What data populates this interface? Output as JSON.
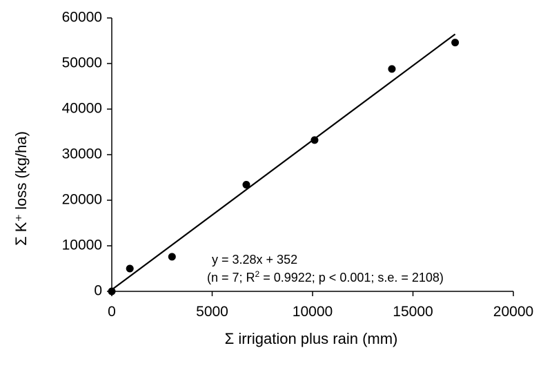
{
  "chart_data": {
    "type": "scatter",
    "title": "",
    "xlabel": "Σ irrigation plus rain (mm)",
    "ylabel": "Σ K⁺ loss (kg/ha)",
    "xlim": [
      0,
      20000
    ],
    "ylim": [
      0,
      60000
    ],
    "x_ticks": [
      0,
      5000,
      10000,
      15000,
      20000
    ],
    "y_ticks": [
      0,
      10000,
      20000,
      30000,
      40000,
      50000,
      60000
    ],
    "grid": false,
    "legend": "none",
    "series": [
      {
        "points": [
          {
            "x": 0,
            "y": 0
          },
          {
            "x": 900,
            "y": 5000
          },
          {
            "x": 3000,
            "y": 7600
          },
          {
            "x": 6700,
            "y": 23400
          },
          {
            "x": 10100,
            "y": 33200
          },
          {
            "x": 13950,
            "y": 48800
          },
          {
            "x": 17100,
            "y": 54600
          }
        ]
      }
    ],
    "trendline": {
      "slope": 3.28,
      "intercept": 352,
      "x_range": [
        0,
        17100
      ]
    },
    "annotations": {
      "equation": "y = 3.28x + 352",
      "stats_prefix": "(n = 7; R",
      "stats_sup": "2",
      "stats_suffix": " = 0.9922; p < 0.001; s.e. = 2108)"
    },
    "colors": {
      "points": "#000000",
      "line": "#000000",
      "axes": "#000000"
    }
  }
}
